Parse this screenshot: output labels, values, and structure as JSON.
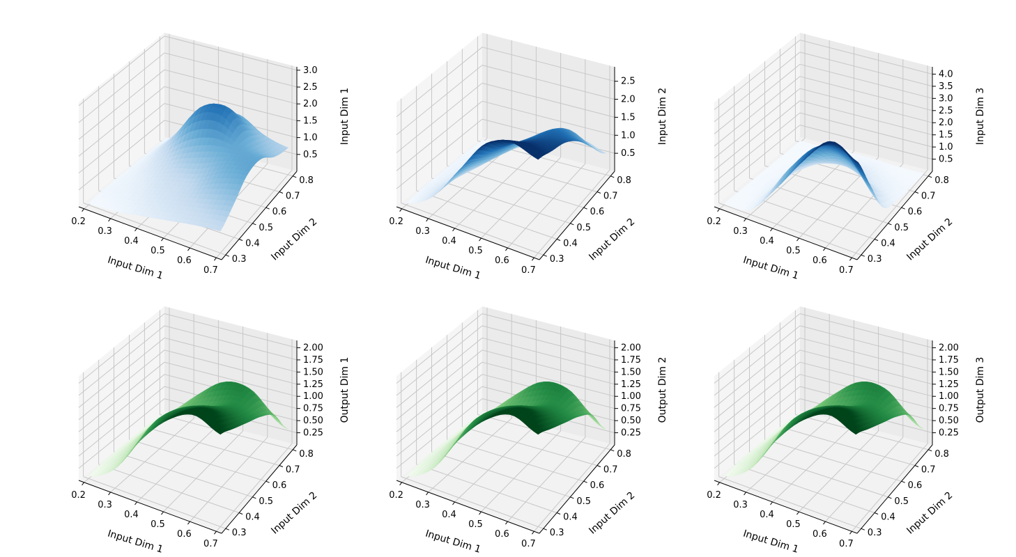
{
  "chart_data": [
    {
      "type": "surface3d",
      "colormap": "Blues",
      "xlabel": "Input Dim 1",
      "ylabel": "Input Dim 2",
      "zlabel": "Input Dim 1",
      "x_ticks": [
        "0.2",
        "0.3",
        "0.4",
        "0.5",
        "0.6",
        "0.7"
      ],
      "y_ticks": [
        "0.3",
        "0.4",
        "0.5",
        "0.6",
        "0.7",
        "0.8"
      ],
      "z_ticks": [
        "0.5",
        "1.0",
        "1.5",
        "2.0",
        "2.5",
        "3.0"
      ],
      "xlim": [
        0.18,
        0.72
      ],
      "ylim": [
        0.27,
        0.83
      ],
      "zlim": [
        0.0,
        3.1
      ],
      "x": [
        0.2,
        0.3,
        0.4,
        0.5,
        0.6,
        0.7
      ],
      "y": [
        0.3,
        0.4,
        0.5,
        0.6,
        0.7,
        0.8
      ],
      "z": [
        [
          0.05,
          0.1,
          0.25,
          0.4,
          0.55,
          0.65
        ],
        [
          0.1,
          0.2,
          0.4,
          0.6,
          0.8,
          1.0
        ],
        [
          0.1,
          0.3,
          0.6,
          0.8,
          1.2,
          1.4
        ],
        [
          0.1,
          0.5,
          1.0,
          1.3,
          1.4,
          1.4
        ],
        [
          0.1,
          0.8,
          1.8,
          2.0,
          1.3,
          1.0
        ],
        [
          0.1,
          0.6,
          1.2,
          1.4,
          1.0,
          0.8
        ]
      ],
      "grid": true
    },
    {
      "type": "surface3d",
      "colormap": "Blues",
      "xlabel": "Input Dim 1",
      "ylabel": "Input Dim 2",
      "zlabel": "Input Dim 2",
      "x_ticks": [
        "0.2",
        "0.3",
        "0.4",
        "0.5",
        "0.6",
        "0.7"
      ],
      "y_ticks": [
        "0.3",
        "0.4",
        "0.5",
        "0.6",
        "0.7",
        "0.8"
      ],
      "z_ticks": [
        "0.5",
        "1.0",
        "1.5",
        "2.0",
        "2.5"
      ],
      "xlim": [
        0.18,
        0.72
      ],
      "ylim": [
        0.27,
        0.83
      ],
      "zlim": [
        0.0,
        2.9
      ],
      "x": [
        0.2,
        0.3,
        0.4,
        0.5,
        0.6,
        0.7
      ],
      "y": [
        0.3,
        0.4,
        0.5,
        0.6,
        0.7,
        0.8
      ],
      "z": [
        [
          0.05,
          0.5,
          1.5,
          2.5,
          2.8,
          2.6
        ],
        [
          0.1,
          0.5,
          1.3,
          2.0,
          2.4,
          2.4
        ],
        [
          0.1,
          0.4,
          1.0,
          1.7,
          2.1,
          2.2
        ],
        [
          0.1,
          0.3,
          0.8,
          1.4,
          1.9,
          1.8
        ],
        [
          0.1,
          0.2,
          0.6,
          1.1,
          1.5,
          1.2
        ],
        [
          0.05,
          0.1,
          0.3,
          0.5,
          0.8,
          0.6
        ]
      ],
      "grid": true
    },
    {
      "type": "surface3d",
      "colormap": "Blues",
      "xlabel": "Input Dim 1",
      "ylabel": "Input Dim 2",
      "zlabel": "Input Dim 3",
      "x_ticks": [
        "0.2",
        "0.3",
        "0.4",
        "0.5",
        "0.6",
        "0.7"
      ],
      "y_ticks": [
        "0.3",
        "0.4",
        "0.5",
        "0.6",
        "0.7",
        "0.8"
      ],
      "z_ticks": [
        "0.5",
        "1.0",
        "1.5",
        "2.0",
        "2.5",
        "3.0",
        "3.5",
        "4.0"
      ],
      "xlim": [
        0.18,
        0.72
      ],
      "ylim": [
        0.27,
        0.83
      ],
      "zlim": [
        0.0,
        4.3
      ],
      "x": [
        0.2,
        0.3,
        0.4,
        0.5,
        0.6,
        0.7
      ],
      "y": [
        0.3,
        0.4,
        0.5,
        0.6,
        0.7,
        0.8
      ],
      "z": [
        [
          0.05,
          0.2,
          1.5,
          3.0,
          4.2,
          3.8
        ],
        [
          0.05,
          0.3,
          1.8,
          3.0,
          3.2,
          2.2
        ],
        [
          0.05,
          0.3,
          1.4,
          2.2,
          1.8,
          0.6
        ],
        [
          0.05,
          0.2,
          0.8,
          1.0,
          0.6,
          0.2
        ],
        [
          0.05,
          0.1,
          0.3,
          0.4,
          0.2,
          0.1
        ],
        [
          0.05,
          0.05,
          0.1,
          0.1,
          0.05,
          0.05
        ]
      ],
      "grid": true
    },
    {
      "type": "surface3d",
      "colormap": "Greens",
      "xlabel": "Input Dim 1",
      "ylabel": "Input Dim 2",
      "zlabel": "Output Dim 1",
      "x_ticks": [
        "0.2",
        "0.3",
        "0.4",
        "0.5",
        "0.6",
        "0.7"
      ],
      "y_ticks": [
        "0.3",
        "0.4",
        "0.5",
        "0.6",
        "0.7",
        "0.8"
      ],
      "z_ticks": [
        "0.25",
        "0.50",
        "0.75",
        "1.00",
        "1.25",
        "1.50",
        "1.75",
        "2.00"
      ],
      "xlim": [
        0.18,
        0.72
      ],
      "ylim": [
        0.27,
        0.83
      ],
      "zlim": [
        0.0,
        2.15
      ],
      "x": [
        0.2,
        0.3,
        0.4,
        0.5,
        0.6,
        0.7
      ],
      "y": [
        0.3,
        0.4,
        0.5,
        0.6,
        0.7,
        0.8
      ],
      "z": [
        [
          0.05,
          0.4,
          1.2,
          1.8,
          2.1,
          1.9
        ],
        [
          0.1,
          0.5,
          1.3,
          1.7,
          1.9,
          1.7
        ],
        [
          0.1,
          0.6,
          1.2,
          1.5,
          1.6,
          1.5
        ],
        [
          0.1,
          0.6,
          1.0,
          1.2,
          1.4,
          1.3
        ],
        [
          0.1,
          0.5,
          1.0,
          1.4,
          1.4,
          1.0
        ],
        [
          0.05,
          0.3,
          0.6,
          0.8,
          0.7,
          0.4
        ]
      ],
      "grid": true
    },
    {
      "type": "surface3d",
      "colormap": "Greens",
      "xlabel": "Input Dim 1",
      "ylabel": "Input Dim 2",
      "zlabel": "Output Dim 2",
      "x_ticks": [
        "0.2",
        "0.3",
        "0.4",
        "0.5",
        "0.6",
        "0.7"
      ],
      "y_ticks": [
        "0.3",
        "0.4",
        "0.5",
        "0.6",
        "0.7",
        "0.8"
      ],
      "z_ticks": [
        "0.25",
        "0.50",
        "0.75",
        "1.00",
        "1.25",
        "1.50",
        "1.75",
        "2.00"
      ],
      "xlim": [
        0.18,
        0.72
      ],
      "ylim": [
        0.27,
        0.83
      ],
      "zlim": [
        0.0,
        2.15
      ],
      "x": [
        0.2,
        0.3,
        0.4,
        0.5,
        0.6,
        0.7
      ],
      "y": [
        0.3,
        0.4,
        0.5,
        0.6,
        0.7,
        0.8
      ],
      "z": [
        [
          0.05,
          0.4,
          1.2,
          1.8,
          2.1,
          1.9
        ],
        [
          0.1,
          0.5,
          1.3,
          1.7,
          1.9,
          1.7
        ],
        [
          0.1,
          0.6,
          1.2,
          1.5,
          1.6,
          1.5
        ],
        [
          0.1,
          0.6,
          1.0,
          1.2,
          1.4,
          1.3
        ],
        [
          0.1,
          0.5,
          1.0,
          1.4,
          1.4,
          1.0
        ],
        [
          0.05,
          0.3,
          0.6,
          0.8,
          0.7,
          0.4
        ]
      ],
      "grid": true
    },
    {
      "type": "surface3d",
      "colormap": "Greens",
      "xlabel": "Input Dim 1",
      "ylabel": "Input Dim 2",
      "zlabel": "Output Dim 3",
      "x_ticks": [
        "0.2",
        "0.3",
        "0.4",
        "0.5",
        "0.6",
        "0.7"
      ],
      "y_ticks": [
        "0.3",
        "0.4",
        "0.5",
        "0.6",
        "0.7",
        "0.8"
      ],
      "z_ticks": [
        "0.25",
        "0.50",
        "0.75",
        "1.00",
        "1.25",
        "1.50",
        "1.75",
        "2.00"
      ],
      "xlim": [
        0.18,
        0.72
      ],
      "ylim": [
        0.27,
        0.83
      ],
      "zlim": [
        0.0,
        2.15
      ],
      "x": [
        0.2,
        0.3,
        0.4,
        0.5,
        0.6,
        0.7
      ],
      "y": [
        0.3,
        0.4,
        0.5,
        0.6,
        0.7,
        0.8
      ],
      "z": [
        [
          0.05,
          0.4,
          1.2,
          1.8,
          2.1,
          1.9
        ],
        [
          0.1,
          0.5,
          1.3,
          1.7,
          1.9,
          1.7
        ],
        [
          0.1,
          0.6,
          1.2,
          1.5,
          1.6,
          1.5
        ],
        [
          0.1,
          0.6,
          1.0,
          1.2,
          1.4,
          1.3
        ],
        [
          0.1,
          0.5,
          1.0,
          1.4,
          1.4,
          1.0
        ],
        [
          0.05,
          0.3,
          0.6,
          0.8,
          0.7,
          0.4
        ]
      ],
      "grid": true
    }
  ]
}
